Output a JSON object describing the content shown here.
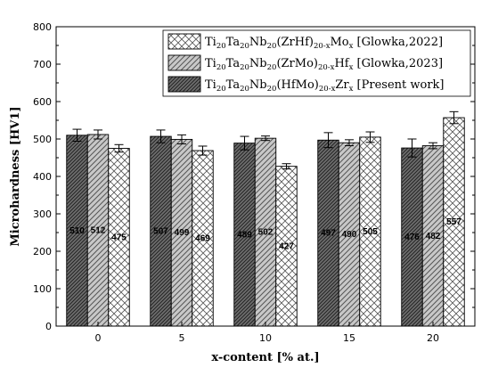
{
  "chart_data": {
    "type": "bar",
    "categories": [
      "0",
      "5",
      "10",
      "15",
      "20"
    ],
    "xlabel": "x-content [% at.]",
    "ylabel": "Microhardness [HV1]",
    "ylim": [
      0,
      800
    ],
    "yticks": [
      0,
      100,
      200,
      300,
      400,
      500,
      600,
      700,
      800
    ],
    "grid": false,
    "legend_position": "top-right",
    "series": [
      {
        "name": "Ti20Ta20Nb20(HfMo)20-xZrx [Present work]",
        "legend_parts": [
          [
            "Ti",
            ""
          ],
          [
            "20",
            "sub"
          ],
          [
            "Ta",
            ""
          ],
          [
            "20",
            "sub"
          ],
          [
            "Nb",
            ""
          ],
          [
            "20",
            "sub"
          ],
          [
            "(HfMo)",
            ""
          ],
          [
            "20-x",
            "sub"
          ],
          [
            "Zr",
            ""
          ],
          [
            "x",
            "sub"
          ],
          [
            " [Present work]",
            ""
          ]
        ],
        "values": [
          510,
          507,
          489,
          497,
          476
        ],
        "errors": [
          16,
          17,
          18,
          20,
          24
        ],
        "fill": "#6e6e6e",
        "pattern": "dense-diagonal"
      },
      {
        "name": "Ti20Ta20Nb20(ZrMo)20-xHfx [Glowka,2023]",
        "legend_parts": [
          [
            "Ti",
            ""
          ],
          [
            "20",
            "sub"
          ],
          [
            "Ta",
            ""
          ],
          [
            "20",
            "sub"
          ],
          [
            "Nb",
            ""
          ],
          [
            "20",
            "sub"
          ],
          [
            "(ZrMo)",
            ""
          ],
          [
            "20-x",
            "sub"
          ],
          [
            "Hf",
            ""
          ],
          [
            "x",
            "sub"
          ],
          [
            " [Glowka,2023]",
            ""
          ]
        ],
        "values": [
          512,
          499,
          502,
          490,
          482
        ],
        "errors": [
          12,
          12,
          6,
          8,
          8
        ],
        "fill": "#c8c8c8",
        "pattern": "diagonal"
      },
      {
        "name": "Ti20Ta20Nb20(ZrHf)20-xMox [Glowka,2022]",
        "legend_parts": [
          [
            "Ti",
            ""
          ],
          [
            "20",
            "sub"
          ],
          [
            "Ta",
            ""
          ],
          [
            "20",
            "sub"
          ],
          [
            "Nb",
            ""
          ],
          [
            "20",
            "sub"
          ],
          [
            "(ZrHf)",
            ""
          ],
          [
            "20-x",
            "sub"
          ],
          [
            "Mo",
            ""
          ],
          [
            "x",
            "sub"
          ],
          [
            " [Glowka,2022]",
            ""
          ]
        ],
        "values": [
          475,
          469,
          427,
          505,
          557
        ],
        "errors": [
          10,
          12,
          7,
          14,
          16
        ],
        "fill": "#ffffff",
        "pattern": "crosshatch"
      }
    ],
    "legend_order": [
      2,
      1,
      0
    ],
    "colors": {
      "axis": "#000000",
      "bar_outline": "#000000"
    }
  }
}
